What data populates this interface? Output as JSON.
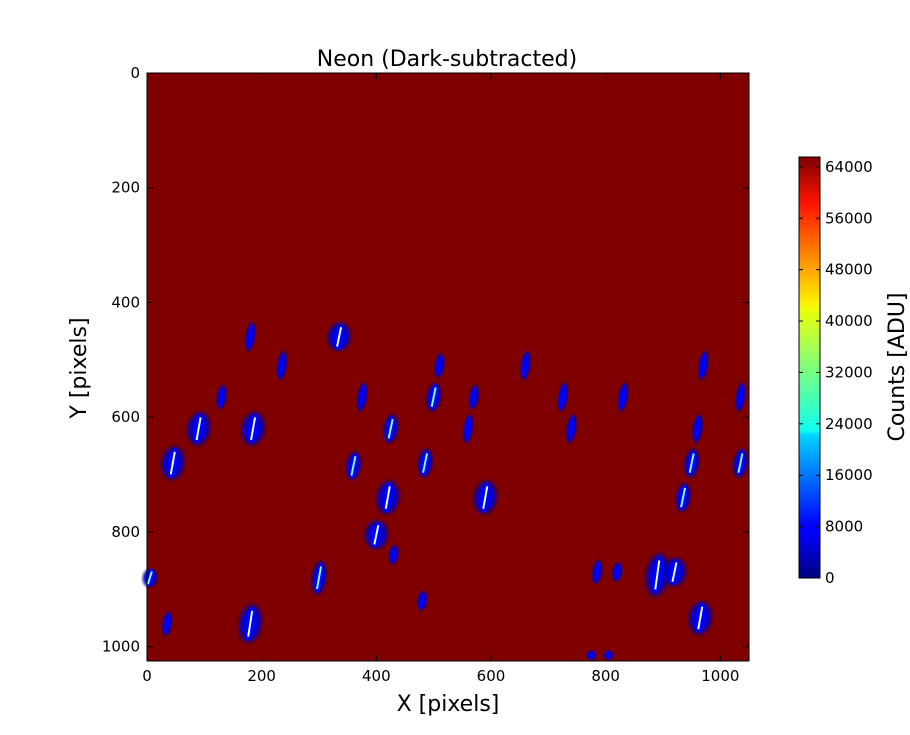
{
  "chart_data": {
    "type": "heatmap",
    "title": "Neon (Dark-subtracted)",
    "xlabel": "X [pixels]",
    "ylabel": "Y [pixels]",
    "xlim": [
      0,
      1050
    ],
    "ylim": [
      1025,
      0
    ],
    "x_ticks": [
      "0",
      "200",
      "400",
      "600",
      "800",
      "1000"
    ],
    "y_ticks": [
      "0",
      "200",
      "400",
      "600",
      "800",
      "1000"
    ],
    "colorbar": {
      "label": "Counts [ADU]",
      "range": [
        0,
        65535
      ],
      "ticks": [
        "0",
        "8000",
        "16000",
        "24000",
        "32000",
        "40000",
        "48000",
        "56000",
        "64000"
      ],
      "colormap": "jet"
    },
    "background_value": 65535,
    "background_color": "#800000",
    "features": [
      {
        "x": 45,
        "y": 680,
        "length": 70,
        "size": "large"
      },
      {
        "x": 90,
        "y": 620,
        "length": 70,
        "size": "large"
      },
      {
        "x": 130,
        "y": 565,
        "length": 50,
        "size": "small"
      },
      {
        "x": 180,
        "y": 460,
        "length": 60,
        "size": "small"
      },
      {
        "x": 185,
        "y": 620,
        "length": 70,
        "size": "large"
      },
      {
        "x": 235,
        "y": 510,
        "length": 60,
        "size": "small"
      },
      {
        "x": 335,
        "y": 460,
        "length": 60,
        "size": "large"
      },
      {
        "x": 375,
        "y": 565,
        "length": 60,
        "size": "small"
      },
      {
        "x": 360,
        "y": 685,
        "length": 60,
        "size": "medium"
      },
      {
        "x": 425,
        "y": 620,
        "length": 60,
        "size": "medium"
      },
      {
        "x": 420,
        "y": 740,
        "length": 70,
        "size": "large"
      },
      {
        "x": 400,
        "y": 805,
        "length": 60,
        "size": "large"
      },
      {
        "x": 500,
        "y": 565,
        "length": 60,
        "size": "medium"
      },
      {
        "x": 485,
        "y": 680,
        "length": 60,
        "size": "medium"
      },
      {
        "x": 510,
        "y": 510,
        "length": 50,
        "size": "small"
      },
      {
        "x": 560,
        "y": 620,
        "length": 60,
        "size": "small"
      },
      {
        "x": 570,
        "y": 565,
        "length": 50,
        "size": "small"
      },
      {
        "x": 590,
        "y": 740,
        "length": 70,
        "size": "large"
      },
      {
        "x": 660,
        "y": 510,
        "length": 60,
        "size": "small"
      },
      {
        "x": 725,
        "y": 565,
        "length": 60,
        "size": "small"
      },
      {
        "x": 740,
        "y": 620,
        "length": 60,
        "size": "small"
      },
      {
        "x": 830,
        "y": 565,
        "length": 60,
        "size": "small"
      },
      {
        "x": 300,
        "y": 880,
        "length": 70,
        "size": "medium"
      },
      {
        "x": 180,
        "y": 960,
        "length": 80,
        "size": "large"
      },
      {
        "x": 35,
        "y": 960,
        "length": 50,
        "size": "small"
      },
      {
        "x": 890,
        "y": 875,
        "length": 90,
        "size": "large"
      },
      {
        "x": 920,
        "y": 870,
        "length": 60,
        "size": "large"
      },
      {
        "x": 935,
        "y": 740,
        "length": 60,
        "size": "medium"
      },
      {
        "x": 950,
        "y": 680,
        "length": 60,
        "size": "medium"
      },
      {
        "x": 960,
        "y": 620,
        "length": 60,
        "size": "small"
      },
      {
        "x": 970,
        "y": 510,
        "length": 60,
        "size": "small"
      },
      {
        "x": 965,
        "y": 950,
        "length": 70,
        "size": "large"
      },
      {
        "x": 1035,
        "y": 680,
        "length": 60,
        "size": "medium"
      },
      {
        "x": 1035,
        "y": 565,
        "length": 60,
        "size": "small"
      },
      {
        "x": 785,
        "y": 870,
        "length": 50,
        "size": "small"
      },
      {
        "x": 820,
        "y": 870,
        "length": 40,
        "size": "small"
      },
      {
        "x": 5,
        "y": 880,
        "length": 40,
        "size": "medium"
      },
      {
        "x": 775,
        "y": 1015,
        "length": 20,
        "size": "small"
      },
      {
        "x": 805,
        "y": 1015,
        "length": 20,
        "size": "small"
      },
      {
        "x": 480,
        "y": 920,
        "length": 40,
        "size": "small"
      },
      {
        "x": 430,
        "y": 840,
        "length": 40,
        "size": "small"
      }
    ]
  }
}
